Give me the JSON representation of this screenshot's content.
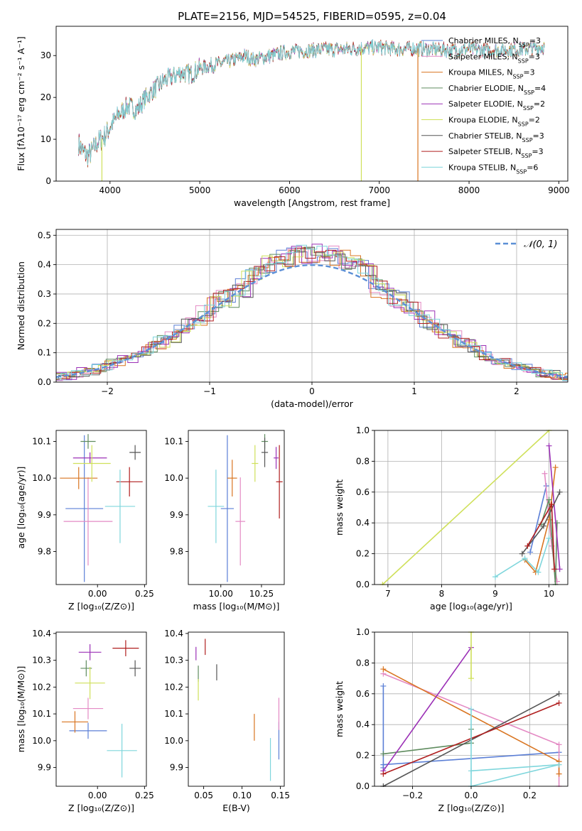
{
  "chart_data": [
    {
      "id": "spectrum",
      "type": "line",
      "title": "PLATE=2156, MJD=54525, FIBERID=0595, z=0.04",
      "xlabel": "wavelength [Angstrom, rest frame]",
      "ylabel": "Flux [fλ10⁻¹⁷ erg cm⁻² s⁻¹ A⁻¹]",
      "xlim": [
        3400,
        9100
      ],
      "ylim": [
        0,
        37
      ],
      "xticks": [
        4000,
        5000,
        6000,
        7000,
        8000,
        9000
      ],
      "yticks": [
        0,
        10,
        20,
        30
      ],
      "grid": false,
      "legend_position": "top-right",
      "curve": {
        "x": [
          3650,
          3700,
          3750,
          3800,
          3850,
          3900,
          3950,
          4000,
          4100,
          4200,
          4300,
          4400,
          4500,
          4600,
          4700,
          4800,
          4900,
          5000,
          5100,
          5200,
          5300,
          5400,
          5500,
          5600,
          5700,
          5800,
          5900,
          6000,
          6200,
          6400,
          6600,
          6800,
          7000,
          7200,
          7400,
          7600,
          7800,
          8000,
          8200,
          8400,
          8600,
          8800
        ],
        "y": [
          9,
          7,
          6,
          7,
          9,
          10,
          11,
          13,
          16,
          18,
          17,
          20,
          22,
          24,
          25,
          26,
          25.5,
          27,
          27.5,
          28,
          28.5,
          29,
          30,
          29,
          29.5,
          30,
          30.5,
          31,
          31.2,
          31.5,
          31.5,
          31.8,
          32,
          31.5,
          31.7,
          31.5,
          31.3,
          31.5,
          31.2,
          31.4,
          31.5,
          32
        ]
      },
      "series": [
        {
          "name": "Chabrier MILES, N",
          "sub": "SSP",
          "suffix": "=3",
          "color": "#5b7fd6"
        },
        {
          "name": "Salpeter MILES, N",
          "sub": "SSP",
          "suffix": "=3",
          "color": "#e48ac4"
        },
        {
          "name": "Kroupa MILES, N",
          "sub": "SSP",
          "suffix": "=3",
          "color": "#d97521"
        },
        {
          "name": "Chabrier ELODIE, N",
          "sub": "SSP",
          "suffix": "=4",
          "color": "#5f8c5f"
        },
        {
          "name": "Salpeter ELODIE, N",
          "sub": "SSP",
          "suffix": "=2",
          "color": "#9b30b6"
        },
        {
          "name": "Kroupa ELODIE, N",
          "sub": "SSP",
          "suffix": "=2",
          "color": "#cfe05a"
        },
        {
          "name": "Chabrier STELIB, N",
          "sub": "SSP",
          "suffix": "=3",
          "color": "#555555"
        },
        {
          "name": "Salpeter STELIB, N",
          "sub": "SSP",
          "suffix": "=3",
          "color": "#b01f1f"
        },
        {
          "name": "Kroupa STELIB, N",
          "sub": "SSP",
          "suffix": "=6",
          "color": "#7fd6dc"
        }
      ],
      "dropouts": [
        {
          "x": 3910,
          "color": "#cfe05a"
        },
        {
          "x": 6800,
          "color": "#cfe05a"
        },
        {
          "x": 7430,
          "color": "#d97521"
        }
      ]
    },
    {
      "id": "residuals",
      "type": "step",
      "xlabel": "(data-model)/error",
      "ylabel": "Normed distribution",
      "xlim": [
        -2.5,
        2.5
      ],
      "ylim": [
        0,
        0.52
      ],
      "xticks": [
        -2,
        -1,
        0,
        1,
        2
      ],
      "yticks": [
        0.0,
        0.1,
        0.2,
        0.3,
        0.4,
        0.5
      ],
      "grid": true,
      "legend_position": "top-right",
      "normal_curve_label": "𝒩(0, 1)",
      "normal_curve_color": "#5b8fd6",
      "bin_width": 0.1
    },
    {
      "id": "age-vs-z",
      "type": "errorbar",
      "xlabel": "Z [log₁₀(Z/Z⊙)]",
      "ylabel": "age  [log₁₀(age/yr)]",
      "xlim": [
        -0.22,
        0.26
      ],
      "ylim": [
        9.71,
        10.13
      ],
      "xticks": [
        0.0,
        0.25
      ],
      "yticks": [
        9.8,
        9.9,
        10.0,
        10.1
      ],
      "points": [
        {
          "x": -0.07,
          "y": 9.917,
          "xerr": 0.1,
          "yerr": 0.2,
          "color": "#5b7fd6"
        },
        {
          "x": -0.05,
          "y": 9.882,
          "xerr": 0.13,
          "yerr": 0.12,
          "color": "#e48ac4"
        },
        {
          "x": -0.1,
          "y": 10.0,
          "xerr": 0.1,
          "yerr": 0.03,
          "color": "#d97521"
        },
        {
          "x": -0.05,
          "y": 10.1,
          "xerr": 0.04,
          "yerr": 0.02,
          "color": "#5f8c5f"
        },
        {
          "x": -0.04,
          "y": 10.055,
          "xerr": 0.09,
          "yerr": 0.015,
          "color": "#9b30b6"
        },
        {
          "x": -0.03,
          "y": 10.04,
          "xerr": 0.1,
          "yerr": 0.05,
          "color": "#cfe05a"
        },
        {
          "x": 0.2,
          "y": 10.07,
          "xerr": 0.03,
          "yerr": 0.02,
          "color": "#555555"
        },
        {
          "x": 0.17,
          "y": 9.99,
          "xerr": 0.07,
          "yerr": 0.04,
          "color": "#b01f1f"
        },
        {
          "x": 0.12,
          "y": 9.923,
          "xerr": 0.08,
          "yerr": 0.1,
          "color": "#7fd6dc"
        }
      ]
    },
    {
      "id": "age-vs-mass",
      "type": "errorbar",
      "xlabel": "mass [log₁₀(M/M⊙)]",
      "ylabel": "",
      "xlim": [
        9.8,
        10.39
      ],
      "ylim": [
        9.71,
        10.13
      ],
      "xticks": [
        10.0,
        10.25
      ],
      "yticks": [
        9.8,
        9.9,
        10.0,
        10.1
      ],
      "points": [
        {
          "x": 10.04,
          "y": 9.917,
          "xerr": 0.04,
          "yerr": 0.2,
          "color": "#5b7fd6"
        },
        {
          "x": 10.12,
          "y": 9.882,
          "xerr": 0.03,
          "yerr": 0.12,
          "color": "#e48ac4"
        },
        {
          "x": 10.07,
          "y": 10.0,
          "xerr": 0.03,
          "yerr": 0.05,
          "color": "#d97521"
        },
        {
          "x": 10.27,
          "y": 10.1,
          "xerr": 0.02,
          "yerr": 0.02,
          "color": "#5f8c5f"
        },
        {
          "x": 10.34,
          "y": 10.055,
          "xerr": 0.015,
          "yerr": 0.03,
          "color": "#9b30b6"
        },
        {
          "x": 10.21,
          "y": 10.04,
          "xerr": 0.02,
          "yerr": 0.05,
          "color": "#cfe05a"
        },
        {
          "x": 10.27,
          "y": 10.07,
          "xerr": 0.02,
          "yerr": 0.04,
          "color": "#555555"
        },
        {
          "x": 10.36,
          "y": 9.99,
          "xerr": 0.02,
          "yerr": 0.1,
          "color": "#b01f1f"
        },
        {
          "x": 9.97,
          "y": 9.923,
          "xerr": 0.05,
          "yerr": 0.1,
          "color": "#7fd6dc"
        }
      ]
    },
    {
      "id": "weight-vs-age",
      "type": "line",
      "xlabel": "age  [log₁₀(age/yr)]",
      "ylabel": "mass weight",
      "xlim": [
        6.75,
        10.35
      ],
      "ylim": [
        0,
        1.0
      ],
      "xticks": [
        7,
        8,
        9,
        10
      ],
      "yticks": [
        0.0,
        0.2,
        0.4,
        0.6,
        0.8,
        1.0
      ],
      "grid": true,
      "series": [
        {
          "color": "#5b7fd6",
          "x": [
            9.65,
            9.95
          ],
          "y": [
            0.21,
            0.64
          ]
        },
        {
          "color": "#e48ac4",
          "x": [
            9.92,
            10.05,
            10.15
          ],
          "y": [
            0.72,
            0.25,
            0.02
          ]
        },
        {
          "color": "#d97521",
          "x": [
            9.55,
            9.75,
            10.0,
            10.12
          ],
          "y": [
            0.16,
            0.08,
            0.42,
            0.76
          ]
        },
        {
          "color": "#5f8c5f",
          "x": [
            9.85,
            10.0,
            10.12,
            10.15
          ],
          "y": [
            0.39,
            0.55,
            0.0,
            0.4
          ]
        },
        {
          "color": "#9b30b6",
          "x": [
            10.0,
            10.2
          ],
          "y": [
            0.9,
            0.1
          ]
        },
        {
          "color": "#cfe05a",
          "x": [
            6.9,
            10.0
          ],
          "y": [
            0.0,
            1.0
          ]
        },
        {
          "color": "#555555",
          "x": [
            9.5,
            9.9,
            10.2
          ],
          "y": [
            0.2,
            0.38,
            0.6
          ]
        },
        {
          "color": "#b01f1f",
          "x": [
            9.6,
            10.05,
            10.1
          ],
          "y": [
            0.25,
            0.52,
            0.1
          ]
        },
        {
          "color": "#7fd6dc",
          "x": [
            9.0,
            9.55,
            9.8,
            10.0
          ],
          "y": [
            0.05,
            0.17,
            0.08,
            0.3
          ]
        }
      ]
    },
    {
      "id": "mass-vs-z",
      "type": "errorbar",
      "xlabel": "Z [log₁₀(Z/Z⊙)]",
      "ylabel": "mass [log₁₀(M/M⊙)]",
      "xlim": [
        -0.22,
        0.26
      ],
      "ylim": [
        9.83,
        10.405
      ],
      "xticks": [
        0.0,
        0.25
      ],
      "yticks": [
        9.9,
        10.0,
        10.1,
        10.2,
        10.3,
        10.4
      ],
      "points": [
        {
          "x": -0.05,
          "y": 10.037,
          "xerr": 0.1,
          "yerr": 0.03,
          "color": "#5b7fd6"
        },
        {
          "x": -0.05,
          "y": 10.12,
          "xerr": 0.08,
          "yerr": 0.04,
          "color": "#e48ac4"
        },
        {
          "x": -0.12,
          "y": 10.07,
          "xerr": 0.07,
          "yerr": 0.04,
          "color": "#d97521"
        },
        {
          "x": -0.06,
          "y": 10.27,
          "xerr": 0.03,
          "yerr": 0.03,
          "color": "#5f8c5f"
        },
        {
          "x": -0.04,
          "y": 10.33,
          "xerr": 0.06,
          "yerr": 0.03,
          "color": "#9b30b6"
        },
        {
          "x": -0.04,
          "y": 10.215,
          "xerr": 0.08,
          "yerr": 0.06,
          "color": "#cfe05a"
        },
        {
          "x": 0.2,
          "y": 10.27,
          "xerr": 0.03,
          "yerr": 0.03,
          "color": "#555555"
        },
        {
          "x": 0.15,
          "y": 10.345,
          "xerr": 0.07,
          "yerr": 0.03,
          "color": "#b01f1f"
        },
        {
          "x": 0.13,
          "y": 9.963,
          "xerr": 0.08,
          "yerr": 0.1,
          "color": "#7fd6dc"
        }
      ]
    },
    {
      "id": "mass-vs-ebv",
      "type": "errorbar",
      "xlabel": "E(B-V)",
      "ylabel": "",
      "xlim": [
        0.03,
        0.155
      ],
      "ylim": [
        9.83,
        10.405
      ],
      "xticks": [
        0.05,
        0.1,
        0.15
      ],
      "yticks": [
        9.9,
        10.0,
        10.1,
        10.2,
        10.3,
        10.4
      ],
      "points": [
        {
          "x": 0.148,
          "y": 10.0,
          "xerr": 0.0,
          "yerr": 0.07,
          "color": "#5b7fd6"
        },
        {
          "x": 0.148,
          "y": 10.1,
          "xerr": 0.0,
          "yerr": 0.06,
          "color": "#e48ac4"
        },
        {
          "x": 0.116,
          "y": 10.05,
          "xerr": 0.0,
          "yerr": 0.05,
          "color": "#d97521"
        },
        {
          "x": 0.043,
          "y": 10.25,
          "xerr": 0.0,
          "yerr": 0.03,
          "color": "#5f8c5f"
        },
        {
          "x": 0.04,
          "y": 10.325,
          "xerr": 0.0,
          "yerr": 0.025,
          "color": "#9b30b6"
        },
        {
          "x": 0.043,
          "y": 10.19,
          "xerr": 0.0,
          "yerr": 0.04,
          "color": "#cfe05a"
        },
        {
          "x": 0.067,
          "y": 10.255,
          "xerr": 0.0,
          "yerr": 0.03,
          "color": "#555555"
        },
        {
          "x": 0.052,
          "y": 10.35,
          "xerr": 0.0,
          "yerr": 0.03,
          "color": "#b01f1f"
        },
        {
          "x": 0.137,
          "y": 9.93,
          "xerr": 0.0,
          "yerr": 0.08,
          "color": "#7fd6dc"
        }
      ]
    },
    {
      "id": "weight-vs-z",
      "type": "line",
      "xlabel": "Z [log₁₀(Z/Z⊙)]",
      "ylabel": "mass weight",
      "xlim": [
        -0.33,
        0.33
      ],
      "ylim": [
        0,
        1.0
      ],
      "xticks": [
        -0.2,
        0.0,
        0.2
      ],
      "yticks": [
        0.0,
        0.2,
        0.4,
        0.6,
        0.8,
        1.0
      ],
      "grid": true,
      "series": [
        {
          "color": "#5b7fd6",
          "x": [
            -0.3,
            -0.3,
            -0.3,
            0.3
          ],
          "y": [
            0.65,
            0.12,
            0.14,
            0.22
          ]
        },
        {
          "color": "#e48ac4",
          "x": [
            -0.3,
            0.3,
            0.3
          ],
          "y": [
            0.73,
            0.27,
            0.0
          ]
        },
        {
          "color": "#d97521",
          "x": [
            -0.3,
            0.3,
            0.3
          ],
          "y": [
            0.76,
            0.16,
            0.08
          ]
        },
        {
          "color": "#5f8c5f",
          "x": [
            -0.3,
            0.0,
            0.0
          ],
          "y": [
            0.21,
            0.28,
            0.37
          ]
        },
        {
          "color": "#9b30b6",
          "x": [
            -0.3,
            0.0
          ],
          "y": [
            0.1,
            0.9
          ]
        },
        {
          "color": "#cfe05a",
          "x": [
            0.0,
            0.0
          ],
          "y": [
            1.0,
            0.7
          ]
        },
        {
          "color": "#555555",
          "x": [
            -0.3,
            0.3
          ],
          "y": [
            0.0,
            0.6
          ]
        },
        {
          "color": "#b01f1f",
          "x": [
            -0.3,
            0.3
          ],
          "y": [
            0.08,
            0.54
          ]
        },
        {
          "color": "#7fd6dc",
          "x": [
            0.0,
            0.0,
            0.3,
            0.0
          ],
          "y": [
            0.5,
            0.0,
            0.14,
            0.1
          ]
        }
      ]
    }
  ]
}
